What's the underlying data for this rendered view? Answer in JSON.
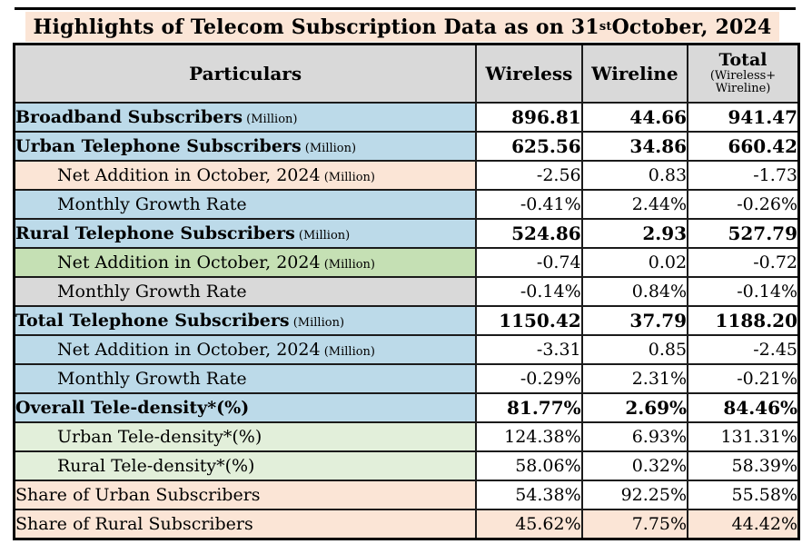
{
  "title": {
    "prefix": "Highlights of Telecom Subscription Data as on 31",
    "superscript": "st",
    "suffix": " October, 2024"
  },
  "colors": {
    "title_bg": "#FBE5D6",
    "header_bg": "#D9D9D9",
    "blue": "#BCDAE9",
    "peach": "#FBE5D6",
    "green": "#C5E0B4",
    "gray": "#D9D9D9",
    "pale_green": "#E2EFDA",
    "white": "#FFFFFF",
    "border": "#000000"
  },
  "table": {
    "headers": {
      "particulars": "Particulars",
      "wireless": "Wireless",
      "wireline": "Wireline",
      "total": "Total",
      "total_sub_line1": "(Wireless+",
      "total_sub_line2": "Wireline)"
    },
    "rows": [
      {
        "label": "Broadband Subscribers",
        "suffix": "(Million)",
        "bold": true,
        "indent": false,
        "label_bg": "#BCDAE9",
        "value_bg": "#FFFFFF",
        "values": [
          "896.81",
          "44.66",
          "941.47"
        ]
      },
      {
        "label": "Urban Telephone Subscribers",
        "suffix": "(Million)",
        "bold": true,
        "indent": false,
        "label_bg": "#BCDAE9",
        "value_bg": "#FFFFFF",
        "values": [
          "625.56",
          "34.86",
          "660.42"
        ]
      },
      {
        "label": "Net Addition in October, 2024",
        "suffix": "(Million)",
        "bold": false,
        "indent": true,
        "label_bg": "#FBE5D6",
        "value_bg": "#FFFFFF",
        "values": [
          "-2.56",
          "0.83",
          "-1.73"
        ]
      },
      {
        "label": "Monthly Growth Rate",
        "suffix": "",
        "bold": false,
        "indent": true,
        "label_bg": "#BCDAE9",
        "value_bg": "#FFFFFF",
        "values": [
          "-0.41%",
          "2.44%",
          "-0.26%"
        ]
      },
      {
        "label": "Rural Telephone Subscribers",
        "suffix": "(Million)",
        "bold": true,
        "indent": false,
        "label_bg": "#BCDAE9",
        "value_bg": "#FFFFFF",
        "values": [
          "524.86",
          "2.93",
          "527.79"
        ]
      },
      {
        "label": "Net Addition in October, 2024",
        "suffix": "(Million)",
        "bold": false,
        "indent": true,
        "label_bg": "#C5E0B4",
        "value_bg": "#FFFFFF",
        "values": [
          "-0.74",
          "0.02",
          "-0.72"
        ]
      },
      {
        "label": "Monthly Growth Rate",
        "suffix": "",
        "bold": false,
        "indent": true,
        "label_bg": "#D9D9D9",
        "value_bg": "#FFFFFF",
        "values": [
          "-0.14%",
          "0.84%",
          "-0.14%"
        ]
      },
      {
        "label": "Total Telephone Subscribers",
        "suffix": "(Million)",
        "bold": true,
        "indent": false,
        "label_bg": "#BCDAE9",
        "value_bg": "#FFFFFF",
        "values": [
          "1150.42",
          "37.79",
          "1188.20"
        ]
      },
      {
        "label": "Net Addition in October, 2024",
        "suffix": "(Million)",
        "bold": false,
        "indent": true,
        "label_bg": "#BCDAE9",
        "value_bg": "#FFFFFF",
        "values": [
          "-3.31",
          "0.85",
          "-2.45"
        ]
      },
      {
        "label": "Monthly Growth Rate",
        "suffix": "",
        "bold": false,
        "indent": true,
        "label_bg": "#BCDAE9",
        "value_bg": "#FFFFFF",
        "values": [
          "-0.29%",
          "2.31%",
          "-0.21%"
        ]
      },
      {
        "label": "Overall Tele-density*(%)",
        "suffix": "",
        "bold": true,
        "indent": false,
        "label_bg": "#BCDAE9",
        "value_bg": "#FFFFFF",
        "values": [
          "81.77%",
          "2.69%",
          "84.46%"
        ]
      },
      {
        "label": "Urban Tele-density*(%)",
        "suffix": "",
        "bold": false,
        "indent": true,
        "label_bg": "#E2EFDA",
        "value_bg": "#FFFFFF",
        "values": [
          "124.38%",
          "6.93%",
          "131.31%"
        ]
      },
      {
        "label": "Rural Tele-density*(%)",
        "suffix": "",
        "bold": false,
        "indent": true,
        "label_bg": "#E2EFDA",
        "value_bg": "#FFFFFF",
        "values": [
          "58.06%",
          "0.32%",
          "58.39%"
        ]
      },
      {
        "label": "Share of Urban Subscribers",
        "suffix": "",
        "bold": false,
        "indent": false,
        "label_bg": "#FBE5D6",
        "value_bg": "#FFFFFF",
        "values": [
          "54.38%",
          "92.25%",
          "55.58%"
        ]
      },
      {
        "label": "Share of Rural Subscribers",
        "suffix": "",
        "bold": false,
        "indent": false,
        "label_bg": "#FBE5D6",
        "value_bg": "#FBE5D6",
        "values": [
          "45.62%",
          "7.75%",
          "44.42%"
        ]
      }
    ]
  }
}
